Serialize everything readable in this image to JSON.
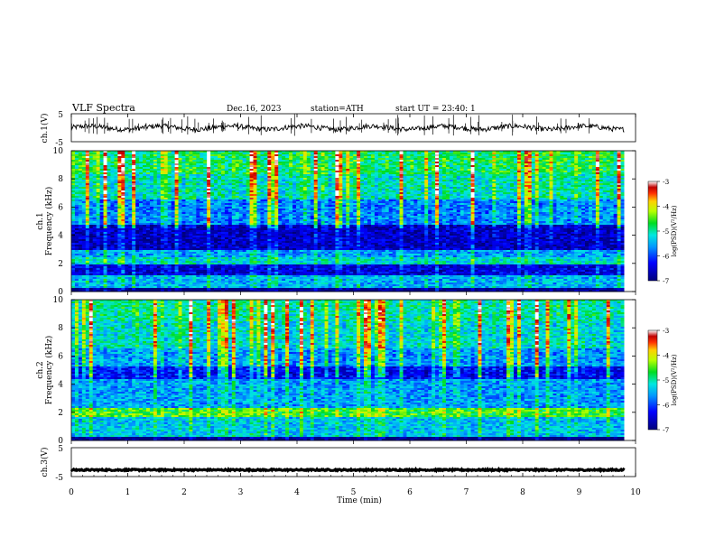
{
  "header": {
    "title": "VLF  Spectra",
    "date": "Dec.16, 2023",
    "station": "station=ATH",
    "start": "start  UT  =    23:40: 1"
  },
  "chart_data": [
    {
      "type": "line",
      "name": "ch1-waveform",
      "ylabel": "ch.1(V)",
      "y_ticks": [
        "5",
        "-5"
      ],
      "ylim": [
        -5,
        5
      ],
      "xlim": [
        0,
        10
      ],
      "data_end_min": 9.8,
      "approx_level": 0
    },
    {
      "type": "heatmap",
      "name": "ch1-spectrogram",
      "ylabel_line1": "ch.1",
      "ylabel_line2": "Frequency (kHz)",
      "y_ticks": [
        "0",
        "2",
        "4",
        "6",
        "8",
        "10"
      ],
      "ylim": [
        0,
        10
      ],
      "xlim": [
        0,
        10
      ],
      "colorbar": {
        "label": "log(PSD)(V²/Hz)",
        "ticks": [
          "-3",
          "-4",
          "-5",
          "-6",
          "-7"
        ],
        "range": [
          -7,
          -3
        ]
      },
      "bands_khz": [
        {
          "from": 0,
          "to": 0.3,
          "level": -7
        },
        {
          "from": 0.3,
          "to": 1.2,
          "level": -5.5
        },
        {
          "from": 1.2,
          "to": 1.9,
          "level": -6.5
        },
        {
          "from": 1.9,
          "to": 2.4,
          "level": -5.2
        },
        {
          "from": 2.4,
          "to": 3.0,
          "level": -5.6
        },
        {
          "from": 3.0,
          "to": 4.8,
          "level": -6.6
        },
        {
          "from": 4.8,
          "to": 6.5,
          "level": -5.7
        },
        {
          "from": 6.5,
          "to": 8.3,
          "level": -5.1
        },
        {
          "from": 8.3,
          "to": 10,
          "level": -4.8
        }
      ]
    },
    {
      "type": "heatmap",
      "name": "ch2-spectrogram",
      "ylabel_line1": "ch.2",
      "ylabel_line2": "Frequency (kHz)",
      "y_ticks": [
        "0",
        "2",
        "4",
        "6",
        "8",
        "10"
      ],
      "ylim": [
        0,
        10
      ],
      "xlim": [
        0,
        10
      ],
      "colorbar": {
        "label": "log(PSD)(V²/Hz)",
        "ticks": [
          "-3",
          "-4",
          "-5",
          "-6",
          "-7"
        ],
        "range": [
          -7,
          -3
        ]
      },
      "bands_khz": [
        {
          "from": 0,
          "to": 0.3,
          "level": -7
        },
        {
          "from": 0.3,
          "to": 1.7,
          "level": -5.4
        },
        {
          "from": 1.7,
          "to": 2.3,
          "level": -4.6
        },
        {
          "from": 2.3,
          "to": 4.3,
          "level": -5.6
        },
        {
          "from": 4.3,
          "to": 5.3,
          "level": -6.3
        },
        {
          "from": 5.3,
          "to": 6.6,
          "level": -5.6
        },
        {
          "from": 6.6,
          "to": 8.5,
          "level": -5.2
        },
        {
          "from": 8.5,
          "to": 10,
          "level": -5.0
        }
      ]
    },
    {
      "type": "line",
      "name": "ch3-waveform",
      "ylabel": "ch.3(V)",
      "y_ticks": [
        "5",
        "-5"
      ],
      "ylim": [
        -5,
        5
      ],
      "xlim": [
        0,
        10
      ],
      "data_end_min": 9.8,
      "approx_level": -2.7
    }
  ],
  "x_axis": {
    "label": "Time  (min)",
    "ticks": [
      "0",
      "1",
      "2",
      "3",
      "4",
      "5",
      "6",
      "7",
      "8",
      "9",
      "10"
    ]
  }
}
